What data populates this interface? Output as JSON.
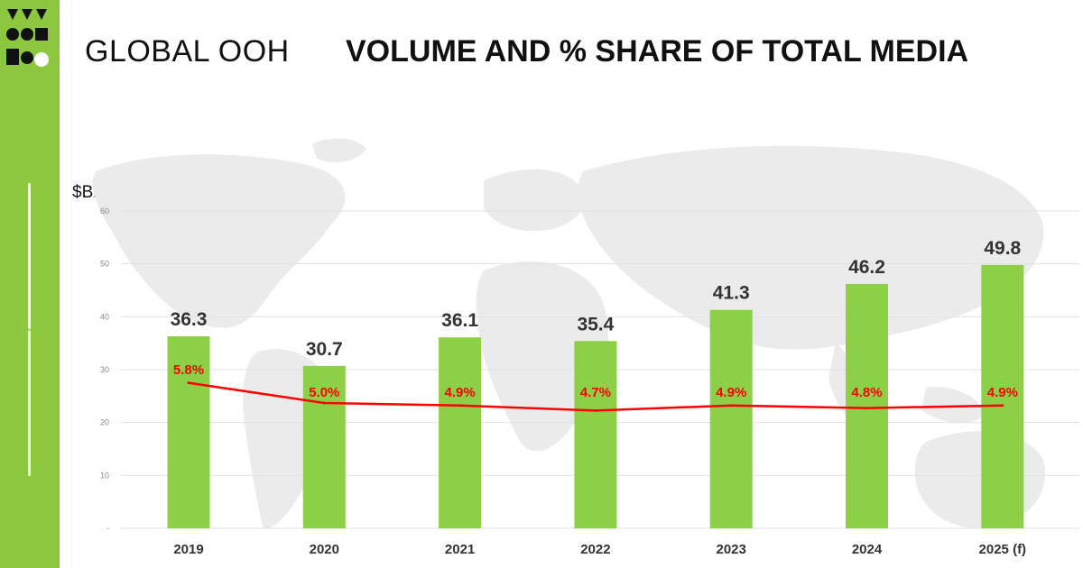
{
  "header": {
    "title_prefix": "GLOBAL OOH",
    "title_main": "VOLUME AND  % SHARE OF TOTAL MEDIA"
  },
  "colors": {
    "brand_green": "#8dc63f",
    "bar_green": "#8dcf46",
    "line_red": "#ff0000",
    "map_gray": "#ebebeb"
  },
  "chart_data": {
    "type": "bar",
    "ylabel": "$Bn USD",
    "ylim": [
      0,
      60
    ],
    "yticks": [
      "-",
      "10",
      "20",
      "30",
      "40",
      "50",
      "60"
    ],
    "grid": true,
    "categories": [
      "2019",
      "2020",
      "2021",
      "2022",
      "2023",
      "2024",
      "2025 (f)"
    ],
    "series": [
      {
        "type": "bar",
        "values": [
          36.3,
          30.7,
          36.1,
          35.4,
          41.3,
          46.2,
          49.8
        ],
        "labels": [
          "36.3",
          "30.7",
          "36.1",
          "35.4",
          "41.3",
          "46.2",
          "49.8"
        ]
      },
      {
        "type": "line",
        "values": [
          5.8,
          5.0,
          4.9,
          4.7,
          4.9,
          4.8,
          4.9
        ],
        "labels": [
          "5.8%",
          "5.0%",
          "4.9%",
          "4.7%",
          "4.9%",
          "4.8%",
          "4.9%"
        ]
      }
    ]
  }
}
